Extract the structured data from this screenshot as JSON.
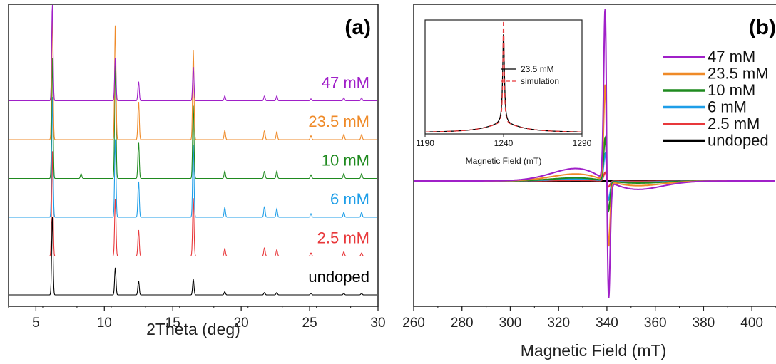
{
  "chart_data": [
    {
      "panel": "(a)",
      "type": "line",
      "xlabel": "2Theta (deg)",
      "ylabel": "",
      "xlim": [
        3,
        30
      ],
      "x_ticks": [
        5,
        10,
        15,
        20,
        25,
        30
      ],
      "peaks_2theta": [
        6.2,
        8.3,
        10.8,
        12.5,
        16.5,
        18.8,
        21.7,
        22.6,
        25.1,
        27.5,
        28.8
      ],
      "series": [
        {
          "name": "undoped",
          "color": "#000000",
          "peak_heights": [
            1.0,
            0.0,
            0.35,
            0.18,
            0.2,
            0.04,
            0.03,
            0.03,
            0.02,
            0.02,
            0.02
          ]
        },
        {
          "name": "2.5 mM",
          "color": "#e8383b",
          "peak_heights": [
            1.0,
            0.0,
            0.55,
            0.25,
            0.55,
            0.07,
            0.08,
            0.06,
            0.03,
            0.04,
            0.03
          ]
        },
        {
          "name": "6 mM",
          "color": "#1e9ee8",
          "peak_heights": [
            1.0,
            0.0,
            0.65,
            0.3,
            0.6,
            0.08,
            0.09,
            0.07,
            0.03,
            0.04,
            0.04
          ]
        },
        {
          "name": "10 mM",
          "color": "#1f8a1f",
          "peak_heights": [
            1.0,
            0.04,
            0.95,
            0.3,
            0.6,
            0.06,
            0.06,
            0.06,
            0.03,
            0.04,
            0.04
          ]
        },
        {
          "name": "23.5 mM",
          "color": "#ef8a28",
          "peak_heights": [
            1.0,
            0.0,
            0.9,
            0.3,
            0.7,
            0.07,
            0.07,
            0.06,
            0.03,
            0.04,
            0.04
          ]
        },
        {
          "name": "47 mM",
          "color": "#a020c8",
          "peak_heights": [
            1.0,
            0.0,
            0.45,
            0.2,
            0.35,
            0.05,
            0.05,
            0.05,
            0.02,
            0.03,
            0.03
          ]
        }
      ]
    },
    {
      "panel": "(b)",
      "type": "line",
      "xlabel": "Magnetic Field (mT)",
      "ylabel": "",
      "xlim": [
        260,
        410
      ],
      "x_ticks": [
        260,
        280,
        300,
        320,
        340,
        360,
        380,
        400
      ],
      "center_field": 340,
      "series": [
        {
          "name": "47 mM",
          "color": "#a020c8",
          "amplitude": 1.0
        },
        {
          "name": "23.5 mM",
          "color": "#ef8a28",
          "amplitude": 0.56
        },
        {
          "name": "10 mM",
          "color": "#1f8a1f",
          "amplitude": 0.25
        },
        {
          "name": "6 mM",
          "color": "#1e9ee8",
          "amplitude": 0.16
        },
        {
          "name": "2.5 mM",
          "color": "#e8383b",
          "amplitude": 0.05
        },
        {
          "name": "undoped",
          "color": "#000000",
          "amplitude": 0.0
        }
      ],
      "inset": {
        "xlabel": "Magnetic Field (mT)",
        "xlim": [
          1190,
          1290
        ],
        "x_ticks": [
          1190,
          1240,
          1290
        ],
        "center_field": 1240,
        "series": [
          {
            "name": "23.5 mM",
            "color": "#000000",
            "style": "solid"
          },
          {
            "name": "simulation",
            "color": "#e8383b",
            "style": "dashed"
          }
        ]
      }
    }
  ]
}
